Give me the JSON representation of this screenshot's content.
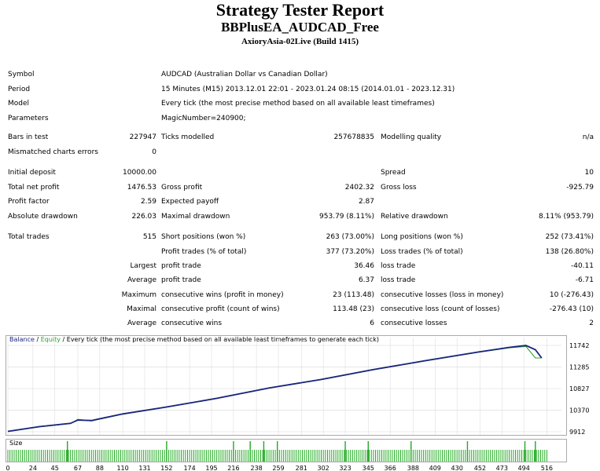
{
  "header": {
    "title": "Strategy Tester Report",
    "ea_name": "BBPlusEA_AUDCAD_Free",
    "server": "AxioryAsia-02Live (Build 1415)"
  },
  "info": {
    "symbol_label": "Symbol",
    "symbol_value": "AUDCAD (Australian Dollar vs Canadian Dollar)",
    "period_label": "Period",
    "period_value": "15 Minutes (M15) 2013.12.01 22:01 - 2023.01.24 08:15 (2014.01.01 - 2023.12.31)",
    "model_label": "Model",
    "model_value": "Every tick (the most precise method based on all available least timeframes)",
    "parameters_label": "Parameters",
    "parameters_value": "MagicNumber=240900;"
  },
  "stats": {
    "bars_label": "Bars in test",
    "bars_value": "227947",
    "ticks_label": "Ticks modelled",
    "ticks_value": "257678835",
    "quality_label": "Modelling quality",
    "quality_value": "n/a",
    "mismatch_label": "Mismatched charts errors",
    "mismatch_value": "0",
    "deposit_label": "Initial deposit",
    "deposit_value": "10000.00",
    "spread_label": "Spread",
    "spread_value": "10",
    "net_label": "Total net profit",
    "net_value": "1476.53",
    "gross_profit_label": "Gross profit",
    "gross_profit_value": "2402.32",
    "gross_loss_label": "Gross loss",
    "gross_loss_value": "-925.79",
    "pf_label": "Profit factor",
    "pf_value": "2.59",
    "payoff_label": "Expected payoff",
    "payoff_value": "2.87",
    "abs_dd_label": "Absolute drawdown",
    "abs_dd_value": "226.03",
    "max_dd_label": "Maximal drawdown",
    "max_dd_value": "953.79 (8.11%)",
    "rel_dd_label": "Relative drawdown",
    "rel_dd_value": "8.11% (953.79)",
    "total_label": "Total trades",
    "total_value": "515",
    "short_label": "Short positions (won %)",
    "short_value": "263 (73.00%)",
    "long_label": "Long positions (won %)",
    "long_value": "252 (73.41%)",
    "ptrades_label": "Profit trades (% of total)",
    "ptrades_value": "377 (73.20%)",
    "ltrades_label": "Loss trades (% of total)",
    "ltrades_value": "138 (26.80%)",
    "largest_label": "Largest",
    "largest_pt_label": "profit trade",
    "largest_pt_value": "36.46",
    "largest_lt_label": "loss trade",
    "largest_lt_value": "-40.11",
    "average_label": "Average",
    "average_pt_label": "profit trade",
    "average_pt_value": "6.37",
    "average_lt_label": "loss trade",
    "average_lt_value": "-6.71",
    "maximum_label": "Maximum",
    "max_cw_label": "consecutive wins (profit in money)",
    "max_cw_value": "23 (113.48)",
    "max_cl_label": "consecutive losses (loss in money)",
    "max_cl_value": "10 (-276.43)",
    "maximal_label": "Maximal",
    "mxl_cp_label": "consecutive profit (count of wins)",
    "mxl_cp_value": "113.48 (23)",
    "mxl_cl_label": "consecutive loss (count of losses)",
    "mxl_cl_value": "-276.43 (10)",
    "average2_label": "Average",
    "avg_cw_label": "consecutive wins",
    "avg_cw_value": "6",
    "avg_cl_label": "consecutive losses",
    "avg_cl_value": "2"
  },
  "chart_legend": {
    "balance": "Balance",
    "sep1": " / ",
    "equity": "Equity",
    "rest": " / Every tick (the most precise method based on all available least timeframes to generate each tick)"
  },
  "size_label": "Size",
  "colors": {
    "balance": "#1a237e",
    "equity": "#2e9e2e",
    "volume": "#22aa22",
    "grid": "#d8d8d8"
  },
  "chart_data": {
    "type": "line",
    "title": "",
    "xlabel": "",
    "ylabel": "",
    "xlim": [
      0,
      530
    ],
    "ylim": [
      9912,
      11742
    ],
    "x_ticks": [
      0,
      24,
      45,
      67,
      88,
      110,
      131,
      152,
      174,
      195,
      216,
      238,
      259,
      281,
      302,
      323,
      345,
      366,
      388,
      409,
      430,
      452,
      473,
      494,
      516
    ],
    "y_ticks": [
      9912,
      10370,
      10827,
      11285,
      11742
    ],
    "series": [
      {
        "name": "Balance",
        "x": [
          0,
          30,
          60,
          67,
          80,
          110,
          150,
          200,
          250,
          300,
          350,
          400,
          450,
          480,
          496,
          505,
          511
        ],
        "y": [
          9920,
          10020,
          10090,
          10160,
          10150,
          10290,
          10430,
          10620,
          10840,
          11020,
          11230,
          11420,
          11600,
          11700,
          11742,
          11650,
          11475
        ]
      },
      {
        "name": "Equity",
        "x": [
          0,
          30,
          60,
          67,
          80,
          110,
          150,
          200,
          250,
          300,
          350,
          400,
          450,
          480,
          496,
          505,
          511
        ],
        "y": [
          9915,
          10015,
          10085,
          10175,
          10140,
          10285,
          10425,
          10615,
          10835,
          11015,
          11225,
          11415,
          11595,
          11690,
          11720,
          11475,
          11475
        ]
      }
    ],
    "volume_spikes_x": [
      57,
      152,
      216,
      232,
      245,
      258,
      323,
      345,
      386,
      440,
      495,
      505
    ],
    "grid": true
  }
}
